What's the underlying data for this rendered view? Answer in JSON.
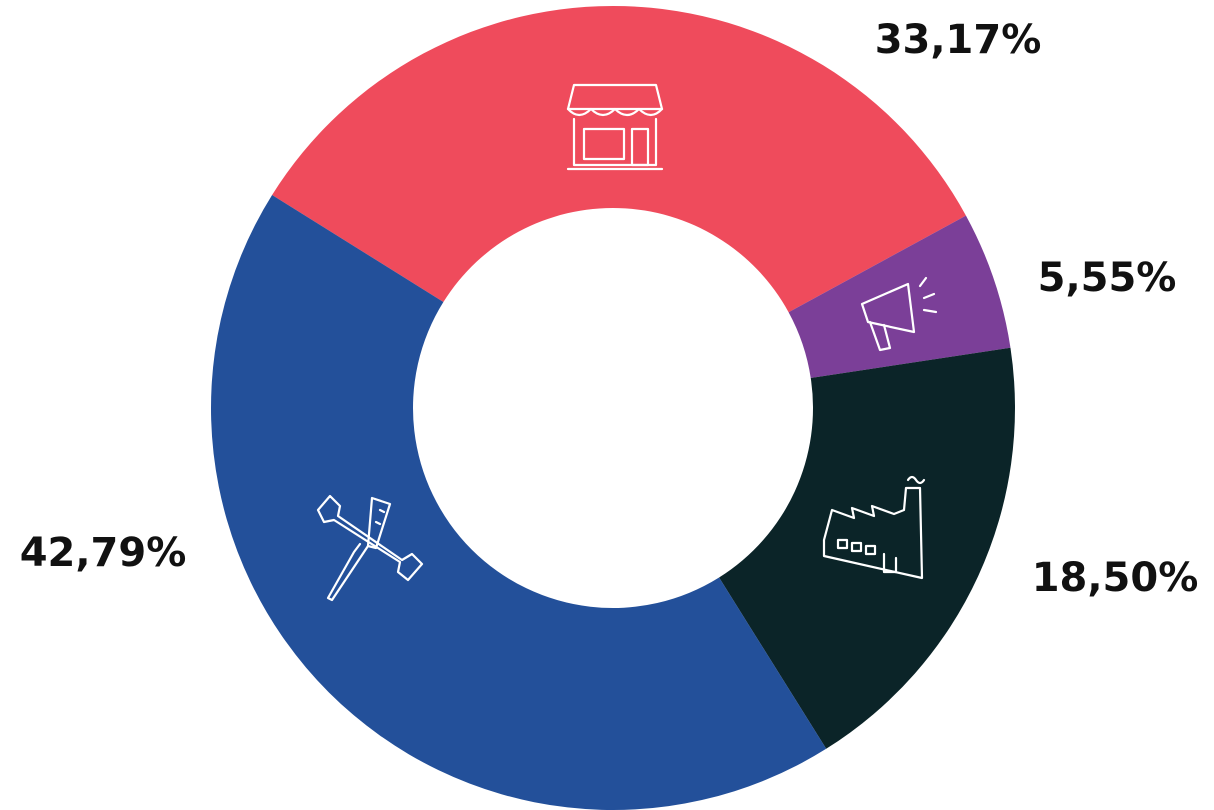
{
  "chart_data": {
    "type": "donut",
    "values": [
      33.17,
      5.55,
      18.5,
      42.79
    ],
    "value_labels": [
      "33,17%",
      "5,55%",
      "18,50%",
      "42,79%"
    ],
    "colors": [
      "#ef4b5c",
      "#7b3f98",
      "#0b2428",
      "#23509a"
    ]
  }
}
